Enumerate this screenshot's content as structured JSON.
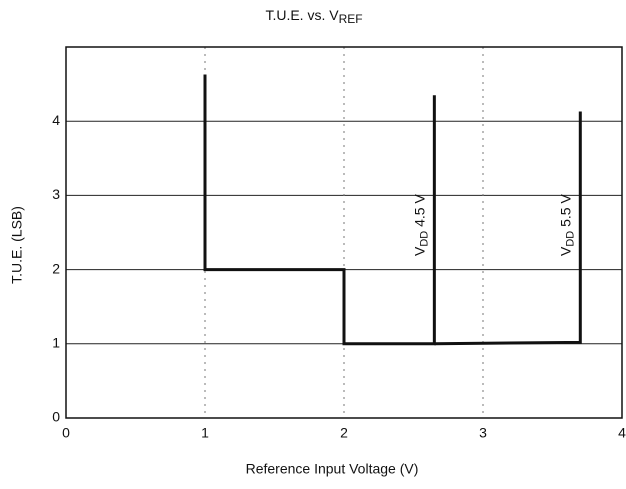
{
  "chart_data": {
    "type": "line",
    "title": {
      "main": "T.U.E. vs. V",
      "sub": "REF"
    },
    "x_label": "Reference Input Voltage (V)",
    "y_label": "T.U.E. (LSB)",
    "xlim": [
      0,
      4
    ],
    "xticks": [
      0,
      1,
      2,
      3,
      4
    ],
    "ylim": [
      0,
      5
    ],
    "yticks": [
      0,
      1,
      2,
      3,
      4
    ],
    "grid": true,
    "series": [
      {
        "color": "#111111",
        "label": {
          "main": "V",
          "sub": "DD",
          "rest": " 4.5 V"
        },
        "label_at": [
          2.55,
          2.6
        ],
        "x": [
          1,
          1,
          2,
          2,
          2.65,
          2.65
        ],
        "y": [
          4.63,
          2,
          2,
          1,
          1,
          4.35
        ]
      },
      {
        "color": "#111111",
        "label": {
          "main": "V",
          "sub": "DD",
          "rest": " 5.5 V"
        },
        "label_at": [
          3.6,
          2.6
        ],
        "x": [
          2.65,
          3.7,
          3.7
        ],
        "y": [
          1,
          1.02,
          4.13
        ]
      }
    ]
  }
}
